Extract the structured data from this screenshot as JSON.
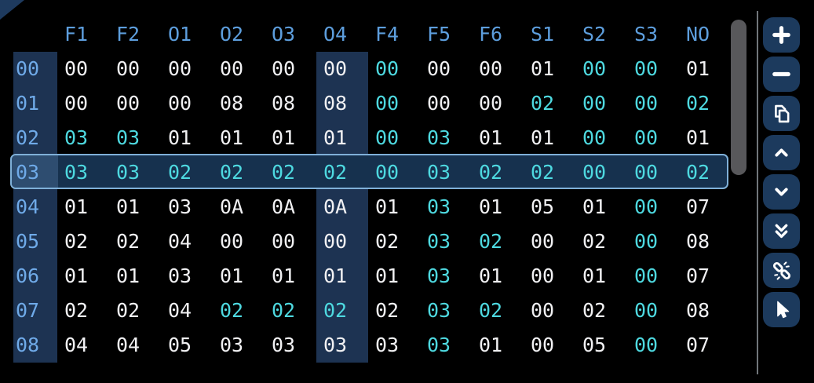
{
  "table": {
    "columns": [
      "F1",
      "F2",
      "O1",
      "O2",
      "O3",
      "O4",
      "F4",
      "F5",
      "F6",
      "S1",
      "S2",
      "S3",
      "NO"
    ],
    "highlighted_column": "O4",
    "selected_row_label": "03",
    "rows": [
      {
        "label": "00",
        "values": [
          "00",
          "00",
          "00",
          "00",
          "00",
          "00",
          "00",
          "00",
          "00",
          "01",
          "00",
          "00",
          "01"
        ],
        "accent": [
          0,
          0,
          0,
          0,
          0,
          0,
          1,
          0,
          0,
          0,
          1,
          1,
          0
        ]
      },
      {
        "label": "01",
        "values": [
          "00",
          "00",
          "00",
          "08",
          "08",
          "08",
          "00",
          "00",
          "00",
          "02",
          "00",
          "00",
          "02"
        ],
        "accent": [
          0,
          0,
          0,
          0,
          0,
          0,
          1,
          0,
          0,
          1,
          1,
          1,
          1
        ]
      },
      {
        "label": "02",
        "values": [
          "03",
          "03",
          "01",
          "01",
          "01",
          "01",
          "00",
          "03",
          "01",
          "01",
          "00",
          "00",
          "01"
        ],
        "accent": [
          1,
          1,
          0,
          0,
          0,
          0,
          1,
          1,
          0,
          0,
          1,
          1,
          0
        ]
      },
      {
        "label": "03",
        "values": [
          "03",
          "03",
          "02",
          "02",
          "02",
          "02",
          "00",
          "03",
          "02",
          "02",
          "00",
          "00",
          "02"
        ],
        "accent": [
          1,
          1,
          1,
          1,
          1,
          1,
          1,
          1,
          1,
          1,
          1,
          1,
          1
        ]
      },
      {
        "label": "04",
        "values": [
          "01",
          "01",
          "03",
          "0A",
          "0A",
          "0A",
          "01",
          "03",
          "01",
          "05",
          "01",
          "00",
          "07"
        ],
        "accent": [
          0,
          0,
          0,
          0,
          0,
          0,
          0,
          1,
          0,
          0,
          0,
          1,
          0
        ]
      },
      {
        "label": "05",
        "values": [
          "02",
          "02",
          "04",
          "00",
          "00",
          "00",
          "02",
          "03",
          "02",
          "00",
          "02",
          "00",
          "08"
        ],
        "accent": [
          0,
          0,
          0,
          0,
          0,
          0,
          0,
          1,
          1,
          0,
          0,
          1,
          0
        ]
      },
      {
        "label": "06",
        "values": [
          "01",
          "01",
          "03",
          "01",
          "01",
          "01",
          "01",
          "03",
          "01",
          "00",
          "01",
          "00",
          "07"
        ],
        "accent": [
          0,
          0,
          0,
          0,
          0,
          0,
          0,
          1,
          0,
          0,
          0,
          1,
          0
        ]
      },
      {
        "label": "07",
        "values": [
          "02",
          "02",
          "04",
          "02",
          "02",
          "02",
          "02",
          "03",
          "02",
          "00",
          "02",
          "00",
          "08"
        ],
        "accent": [
          0,
          0,
          0,
          1,
          1,
          1,
          0,
          1,
          1,
          0,
          0,
          1,
          0
        ]
      },
      {
        "label": "08",
        "values": [
          "04",
          "04",
          "05",
          "03",
          "03",
          "03",
          "03",
          "03",
          "01",
          "00",
          "05",
          "00",
          "07"
        ],
        "accent": [
          0,
          0,
          0,
          0,
          0,
          0,
          0,
          1,
          0,
          0,
          0,
          1,
          0
        ]
      }
    ]
  },
  "toolbar": {
    "buttons": [
      {
        "label": "Add",
        "icon": "plus-icon"
      },
      {
        "label": "Remove",
        "icon": "minus-icon"
      },
      {
        "label": "Copy",
        "icon": "copy-icon"
      },
      {
        "label": "Move up",
        "icon": "chevron-up-icon"
      },
      {
        "label": "Move down",
        "icon": "chevron-down-icon"
      },
      {
        "label": "Move to bottom",
        "icon": "double-chevron-down-icon"
      },
      {
        "label": "Unlink",
        "icon": "broken-link-icon"
      },
      {
        "label": "Select",
        "icon": "cursor-icon"
      }
    ]
  },
  "colors": {
    "background": "#000000",
    "header_text": "#5d9edd",
    "row_label_text": "#6faae8",
    "value_text": "#f1f1f3",
    "accent_value_text": "#4ed9e0",
    "column_bg": "#1d3352",
    "selected_row_bg": "#16314e",
    "selected_row_border": "#7fb0d8",
    "selected_row_label_bg": "#2e4d70",
    "button_bg": "#1c3a5d",
    "scrollbar_thumb": "#58585b"
  }
}
